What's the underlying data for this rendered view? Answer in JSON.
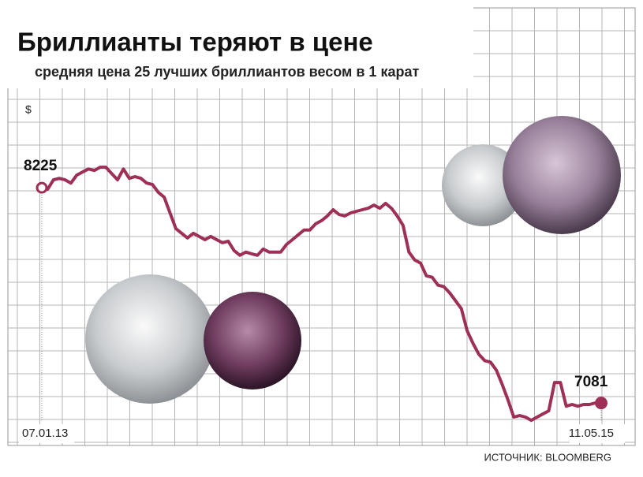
{
  "chart_data": {
    "type": "line",
    "title": "Бриллианты теряют в цене",
    "subtitle": "средняя цена 25 лучших бриллиантов весом в 1 карат",
    "y_label": "$",
    "source": "ИСТОЧНИК: BLOOMBERG",
    "categories": [
      "07.01.13",
      null,
      null,
      null,
      null,
      null,
      null,
      null,
      null,
      null,
      null,
      null,
      null,
      null,
      null,
      null,
      null,
      null,
      null,
      null,
      null,
      null,
      null,
      null,
      null,
      null,
      null,
      null,
      null,
      null,
      null,
      null,
      null,
      null,
      null,
      null,
      null,
      null,
      null,
      null,
      null,
      null,
      null,
      null,
      null,
      null,
      null,
      null,
      null,
      null,
      null,
      null,
      null,
      null,
      null,
      null,
      null,
      null,
      null,
      null,
      null,
      null,
      null,
      null,
      null,
      null,
      null,
      null,
      null,
      null,
      null,
      null,
      null,
      null,
      null,
      null,
      null,
      null,
      null,
      null,
      null,
      null,
      null,
      null,
      null,
      null,
      null,
      null,
      null,
      null,
      null,
      null,
      null,
      null,
      null,
      null,
      "11.05.15"
    ],
    "values": [
      8225,
      8217,
      8267,
      8275,
      8267,
      8250,
      8292,
      8309,
      8325,
      8317,
      8334,
      8334,
      8300,
      8267,
      8325,
      8275,
      8284,
      8275,
      8250,
      8242,
      8200,
      8175,
      8091,
      8008,
      7983,
      7958,
      7983,
      7966,
      7949,
      7966,
      7949,
      7933,
      7941,
      7891,
      7866,
      7883,
      7874,
      7866,
      7899,
      7883,
      7883,
      7883,
      7924,
      7949,
      7975,
      8000,
      8000,
      8033,
      8050,
      8075,
      8108,
      8083,
      8075,
      8091,
      8100,
      8108,
      8116,
      8133,
      8116,
      8142,
      8116,
      8075,
      8025,
      7883,
      7841,
      7824,
      7757,
      7749,
      7707,
      7699,
      7666,
      7624,
      7582,
      7465,
      7398,
      7340,
      7306,
      7298,
      7256,
      7181,
      7098,
      7006,
      7014,
      7006,
      6989,
      7006,
      7023,
      7039,
      7190,
      7190,
      7064,
      7073,
      7064,
      7073,
      7073,
      7081,
      7081
    ],
    "color": "#9e2f57",
    "ylim": [
      6960,
      8720
    ],
    "grid": true
  }
}
